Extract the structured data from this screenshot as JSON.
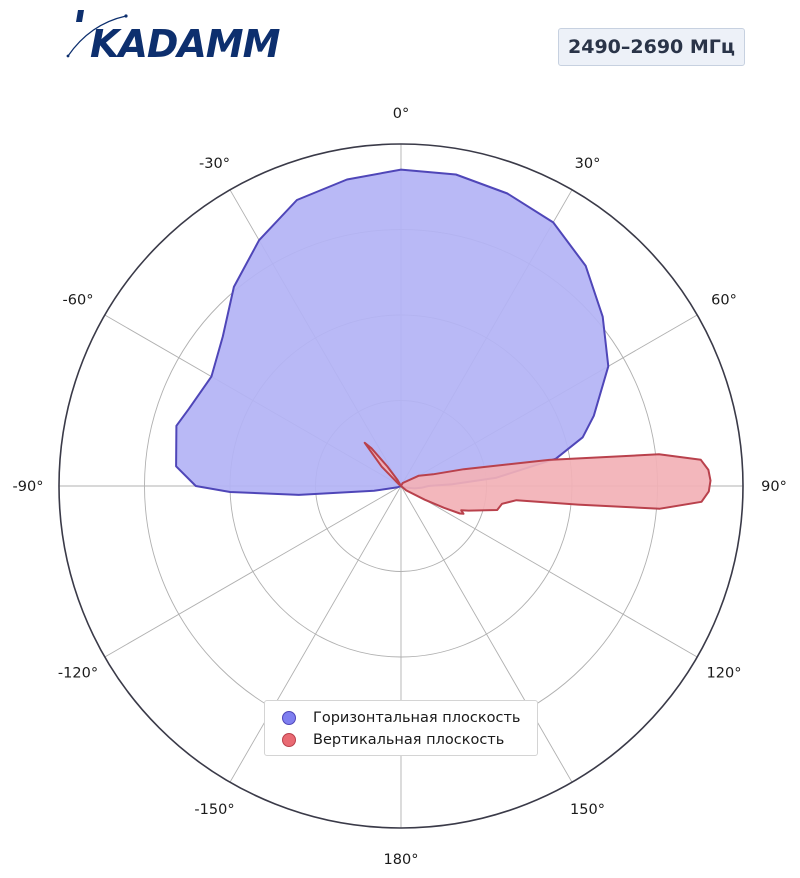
{
  "brand": {
    "name": "KADAMM"
  },
  "badge": {
    "frequency": "2490–2690 МГц"
  },
  "colors": {
    "horizontal_fill": "#b3b3f5",
    "horizontal_line": "#4f46b8",
    "vertical_fill": "#f2b1b6",
    "vertical_line": "#b9414c",
    "grid": "#b0b0b0",
    "outer_ring": "#3a3a48",
    "logo": "#0d2f6e"
  },
  "chart_data": {
    "type": "polar",
    "theta_labels": [
      "0°",
      "30°",
      "60°",
      "90°",
      "120°",
      "150°",
      "180°",
      "-150°",
      "-120°",
      "-90°",
      "-60°",
      "-30°"
    ],
    "theta_ticks": [
      0,
      30,
      60,
      90,
      120,
      150,
      180,
      -150,
      -120,
      -90,
      -60,
      -30
    ],
    "r_rings": [
      0.25,
      0.5,
      0.75,
      1.0
    ],
    "grid": true,
    "legend_position": "bottom-center",
    "series": [
      {
        "name": "Горизонтальная плоскость",
        "color": "#4f46b8",
        "fill": "#b3b3f5",
        "points": [
          [
            0,
            0.925
          ],
          [
            10,
            0.925
          ],
          [
            20,
            0.91
          ],
          [
            30,
            0.89
          ],
          [
            40,
            0.84
          ],
          [
            50,
            0.77
          ],
          [
            60,
            0.7
          ],
          [
            70,
            0.6
          ],
          [
            75,
            0.55
          ],
          [
            80,
            0.46
          ],
          [
            85,
            0.28
          ],
          [
            88,
            0.15
          ],
          [
            90,
            0.08
          ],
          [
            95,
            0.06
          ],
          [
            100,
            0.04
          ],
          [
            105,
            0.02
          ],
          [
            110,
            0.01
          ],
          [
            180,
            0.0
          ],
          [
            -110,
            0.01
          ],
          [
            -100,
            0.08
          ],
          [
            -95,
            0.3
          ],
          [
            -92,
            0.5
          ],
          [
            -90,
            0.6
          ],
          [
            -85,
            0.66
          ],
          [
            -75,
            0.68
          ],
          [
            -70,
            0.66
          ],
          [
            -60,
            0.64
          ],
          [
            -50,
            0.68
          ],
          [
            -40,
            0.76
          ],
          [
            -30,
            0.83
          ],
          [
            -20,
            0.89
          ],
          [
            -10,
            0.91
          ],
          [
            0,
            0.925
          ]
        ]
      },
      {
        "name": "Вертикальная плоскость",
        "color": "#b9414c",
        "fill": "#f2b1b6",
        "points": [
          [
            0,
            0.0
          ],
          [
            30,
            0.01
          ],
          [
            60,
            0.06
          ],
          [
            70,
            0.1
          ],
          [
            75,
            0.19
          ],
          [
            80,
            0.44
          ],
          [
            83,
            0.76
          ],
          [
            85,
            0.88
          ],
          [
            87,
            0.9
          ],
          [
            89,
            0.905
          ],
          [
            91,
            0.9
          ],
          [
            93,
            0.88
          ],
          [
            95,
            0.76
          ],
          [
            96,
            0.52
          ],
          [
            97,
            0.34
          ],
          [
            100,
            0.3
          ],
          [
            104,
            0.29
          ],
          [
            110,
            0.21
          ],
          [
            112,
            0.19
          ],
          [
            114,
            0.2
          ],
          [
            115,
            0.19
          ],
          [
            117,
            0.14
          ],
          [
            120,
            0.08
          ],
          [
            130,
            0.02
          ],
          [
            180,
            0.0
          ],
          [
            -100,
            0.0
          ],
          [
            -60,
            0.0
          ],
          [
            -50,
            0.01
          ],
          [
            -45,
            0.08
          ],
          [
            -40,
            0.165
          ],
          [
            -38,
            0.14
          ],
          [
            -35,
            0.07
          ],
          [
            -30,
            0.02
          ],
          [
            0,
            0.0
          ]
        ]
      }
    ]
  }
}
